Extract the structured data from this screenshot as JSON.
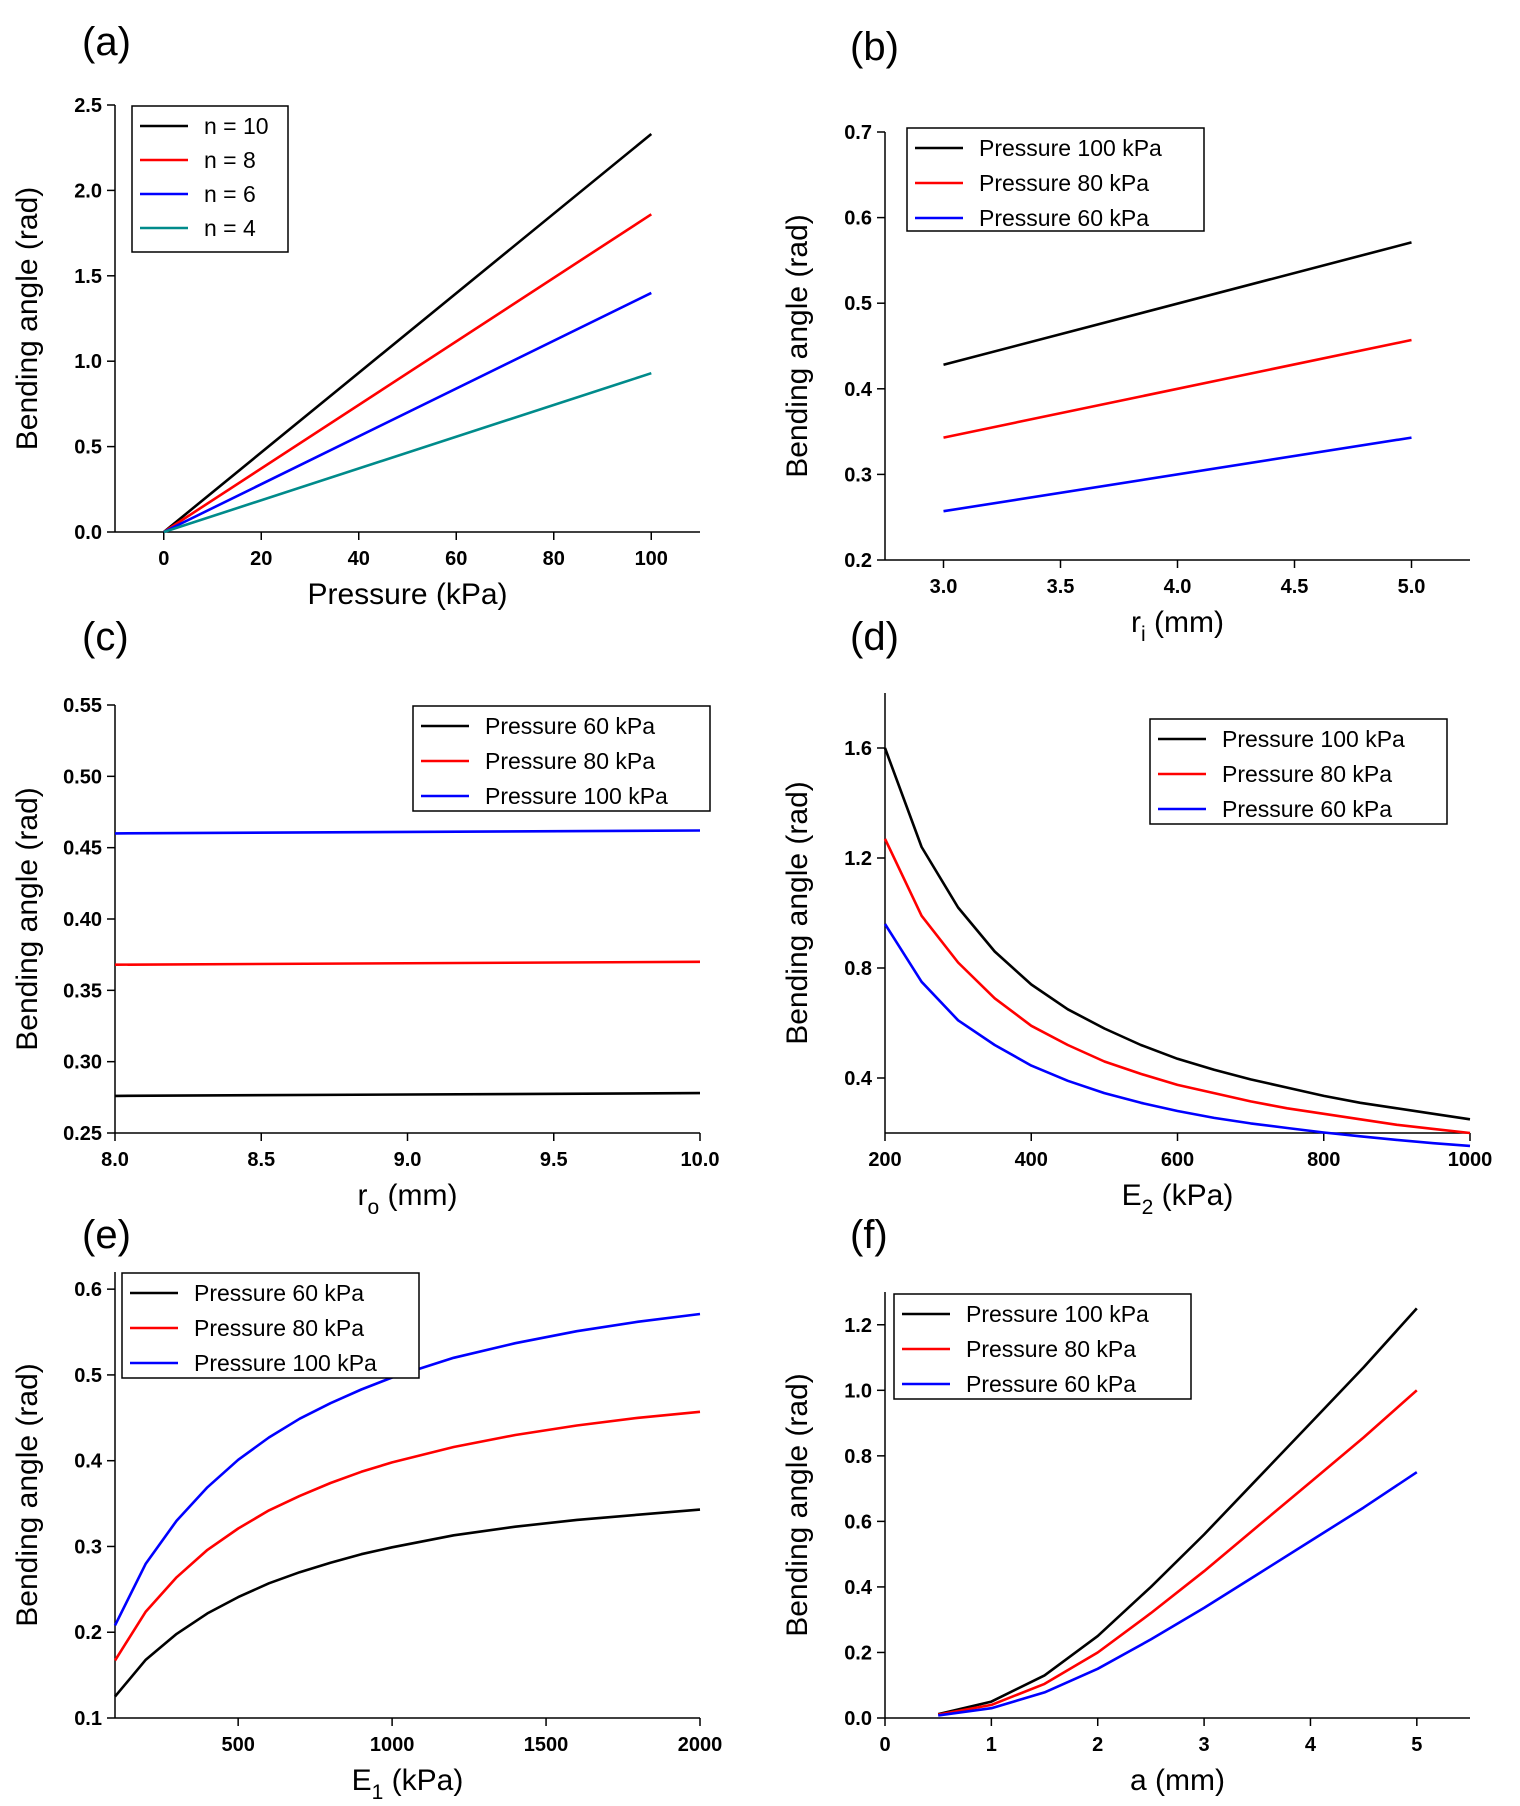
{
  "chart_data": [
    {
      "panel": "(a)",
      "type": "line",
      "xlabel": "Pressure (kPa)",
      "xlabel_sub": "",
      "xlabel_unit": "",
      "ylabel": "Bending angle (rad)",
      "xlim": [
        -10,
        110
      ],
      "ylim": [
        0,
        2.5
      ],
      "xticks": [
        0,
        20,
        40,
        60,
        80,
        100
      ],
      "yticks": [
        0.0,
        0.5,
        1.0,
        1.5,
        2.0,
        2.5
      ],
      "xdec": 0,
      "ydec": 1,
      "legend_position": "top-left",
      "series": [
        {
          "name": "n = 10",
          "color": "#000000",
          "x": [
            0,
            100
          ],
          "y": [
            0,
            2.33
          ]
        },
        {
          "name": "n = 8",
          "color": "#ff0000",
          "x": [
            0,
            100
          ],
          "y": [
            0,
            1.86
          ]
        },
        {
          "name": "n = 6",
          "color": "#0000ff",
          "x": [
            0,
            100
          ],
          "y": [
            0,
            1.4
          ]
        },
        {
          "name": "n = 4",
          "color": "#008b8b",
          "x": [
            0,
            100
          ],
          "y": [
            0,
            0.93
          ]
        }
      ]
    },
    {
      "panel": "(b)",
      "type": "line",
      "xlabel": "r",
      "xlabel_sub": "i",
      "xlabel_unit": " (mm)",
      "ylabel": "Bending angle (rad)",
      "xlim": [
        2.75,
        5.25
      ],
      "ylim": [
        0.2,
        0.7
      ],
      "xticks": [
        3.0,
        3.5,
        4.0,
        4.5,
        5.0
      ],
      "yticks": [
        0.2,
        0.3,
        0.4,
        0.5,
        0.6,
        0.7
      ],
      "xdec": 1,
      "ydec": 1,
      "legend_position": "top-left",
      "series": [
        {
          "name": "Pressure 100 kPa",
          "color": "#000000",
          "x": [
            3.0,
            5.0
          ],
          "y": [
            0.428,
            0.571
          ]
        },
        {
          "name": "Pressure 80 kPa",
          "color": "#ff0000",
          "x": [
            3.0,
            5.0
          ],
          "y": [
            0.343,
            0.457
          ]
        },
        {
          "name": "Pressure 60 kPa",
          "color": "#0000ff",
          "x": [
            3.0,
            5.0
          ],
          "y": [
            0.257,
            0.343
          ]
        }
      ]
    },
    {
      "panel": "(c)",
      "type": "line",
      "xlabel": "r",
      "xlabel_sub": "o",
      "xlabel_unit": " (mm)",
      "ylabel": "Bending angle (rad)",
      "xlim": [
        8.0,
        10.0
      ],
      "ylim": [
        0.25,
        0.55
      ],
      "xticks": [
        8.0,
        8.5,
        9.0,
        9.5,
        10.0
      ],
      "yticks": [
        0.25,
        0.3,
        0.35,
        0.4,
        0.45,
        0.5,
        0.55
      ],
      "xdec": 1,
      "ydec": 2,
      "legend_position": "top-right",
      "series": [
        {
          "name": "Pressure 60 kPa",
          "color": "#000000",
          "x": [
            8.0,
            10.0
          ],
          "y": [
            0.276,
            0.278
          ]
        },
        {
          "name": "Pressure 80 kPa",
          "color": "#ff0000",
          "x": [
            8.0,
            10.0
          ],
          "y": [
            0.368,
            0.37
          ]
        },
        {
          "name": "Pressure 100 kPa",
          "color": "#0000ff",
          "x": [
            8.0,
            10.0
          ],
          "y": [
            0.46,
            0.462
          ]
        }
      ]
    },
    {
      "panel": "(d)",
      "type": "line",
      "xlabel": "E",
      "xlabel_sub": "2",
      "xlabel_unit": " (kPa)",
      "ylabel": "Bending angle (rad)",
      "xlim": [
        200,
        1000
      ],
      "ylim": [
        0.2,
        1.8
      ],
      "xticks": [
        200,
        400,
        600,
        800,
        1000
      ],
      "yticks": [
        0.4,
        0.8,
        1.2,
        1.6
      ],
      "xdec": 0,
      "ydec": 1,
      "legend_position": "top-right",
      "series": [
        {
          "name": "Pressure 100 kPa",
          "color": "#000000",
          "x": [
            200,
            250,
            300,
            350,
            400,
            450,
            500,
            550,
            600,
            650,
            700,
            750,
            800,
            850,
            900,
            950,
            1000
          ],
          "y": [
            1.6,
            1.24,
            1.02,
            0.86,
            0.74,
            0.65,
            0.58,
            0.52,
            0.47,
            0.43,
            0.395,
            0.365,
            0.335,
            0.31,
            0.29,
            0.27,
            0.25
          ]
        },
        {
          "name": "Pressure 80 kPa",
          "color": "#ff0000",
          "x": [
            200,
            250,
            300,
            350,
            400,
            450,
            500,
            550,
            600,
            650,
            700,
            750,
            800,
            850,
            900,
            950,
            1000
          ],
          "y": [
            1.27,
            0.99,
            0.82,
            0.69,
            0.59,
            0.52,
            0.46,
            0.415,
            0.375,
            0.345,
            0.315,
            0.29,
            0.27,
            0.25,
            0.23,
            0.215,
            0.2
          ]
        },
        {
          "name": "Pressure 60 kPa",
          "color": "#0000ff",
          "x": [
            200,
            250,
            300,
            350,
            400,
            450,
            500,
            550,
            600,
            650,
            700,
            750,
            800,
            850,
            900,
            950,
            1000
          ],
          "y": [
            0.96,
            0.75,
            0.61,
            0.52,
            0.445,
            0.39,
            0.345,
            0.31,
            0.28,
            0.255,
            0.235,
            0.218,
            0.202,
            0.188,
            0.175,
            0.163,
            0.153
          ]
        }
      ]
    },
    {
      "panel": "(e)",
      "type": "line",
      "xlabel": "E",
      "xlabel_sub": "1",
      "xlabel_unit": " (kPa)",
      "ylabel": "Bending angle (rad)",
      "xlim": [
        100,
        2000
      ],
      "ylim": [
        0.1,
        0.62
      ],
      "xticks": [
        500,
        1000,
        1500,
        2000
      ],
      "yticks": [
        0.1,
        0.2,
        0.3,
        0.4,
        0.5,
        0.6
      ],
      "xdec": 0,
      "ydec": 1,
      "legend_position": "top-left",
      "series": [
        {
          "name": "Pressure 60 kPa",
          "color": "#000000",
          "x": [
            100,
            200,
            300,
            400,
            500,
            600,
            700,
            800,
            900,
            1000,
            1200,
            1400,
            1600,
            1800,
            2000
          ],
          "y": [
            0.125,
            0.168,
            0.198,
            0.222,
            0.241,
            0.257,
            0.27,
            0.281,
            0.291,
            0.299,
            0.313,
            0.323,
            0.331,
            0.337,
            0.343
          ]
        },
        {
          "name": "Pressure 80 kPa",
          "color": "#ff0000",
          "x": [
            100,
            200,
            300,
            400,
            500,
            600,
            700,
            800,
            900,
            1000,
            1200,
            1400,
            1600,
            1800,
            2000
          ],
          "y": [
            0.167,
            0.224,
            0.264,
            0.296,
            0.321,
            0.342,
            0.359,
            0.374,
            0.387,
            0.398,
            0.416,
            0.43,
            0.441,
            0.45,
            0.457
          ]
        },
        {
          "name": "Pressure 100 kPa",
          "color": "#0000ff",
          "x": [
            100,
            200,
            300,
            400,
            500,
            600,
            700,
            800,
            900,
            1000,
            1200,
            1400,
            1600,
            1800,
            2000
          ],
          "y": [
            0.208,
            0.28,
            0.33,
            0.369,
            0.401,
            0.427,
            0.449,
            0.467,
            0.483,
            0.497,
            0.52,
            0.537,
            0.551,
            0.562,
            0.571
          ]
        }
      ]
    },
    {
      "panel": "(f)",
      "type": "line",
      "xlabel": "a (mm)",
      "xlabel_sub": "",
      "xlabel_unit": "",
      "ylabel": "Bending angle (rad)",
      "xlim": [
        0,
        5.5
      ],
      "ylim": [
        0,
        1.3
      ],
      "xticks": [
        0,
        1,
        2,
        3,
        4,
        5
      ],
      "yticks": [
        0.0,
        0.2,
        0.4,
        0.6,
        0.8,
        1.0,
        1.2
      ],
      "xdec": 0,
      "ydec": 1,
      "legend_position": "top-left",
      "series": [
        {
          "name": "Pressure 100 kPa",
          "color": "#000000",
          "x": [
            0.5,
            1.0,
            1.5,
            2.0,
            2.5,
            3.0,
            3.5,
            4.0,
            4.5,
            5.0
          ],
          "y": [
            0.012,
            0.05,
            0.13,
            0.25,
            0.4,
            0.56,
            0.73,
            0.9,
            1.07,
            1.25
          ]
        },
        {
          "name": "Pressure 80 kPa",
          "color": "#ff0000",
          "x": [
            0.5,
            1.0,
            1.5,
            2.0,
            2.5,
            3.0,
            3.5,
            4.0,
            4.5,
            5.0
          ],
          "y": [
            0.01,
            0.04,
            0.104,
            0.2,
            0.32,
            0.448,
            0.584,
            0.72,
            0.856,
            1.0
          ]
        },
        {
          "name": "Pressure 60 kPa",
          "color": "#0000ff",
          "x": [
            0.5,
            1.0,
            1.5,
            2.0,
            2.5,
            3.0,
            3.5,
            4.0,
            4.5,
            5.0
          ],
          "y": [
            0.008,
            0.03,
            0.078,
            0.15,
            0.24,
            0.336,
            0.438,
            0.54,
            0.642,
            0.75
          ]
        }
      ]
    }
  ]
}
